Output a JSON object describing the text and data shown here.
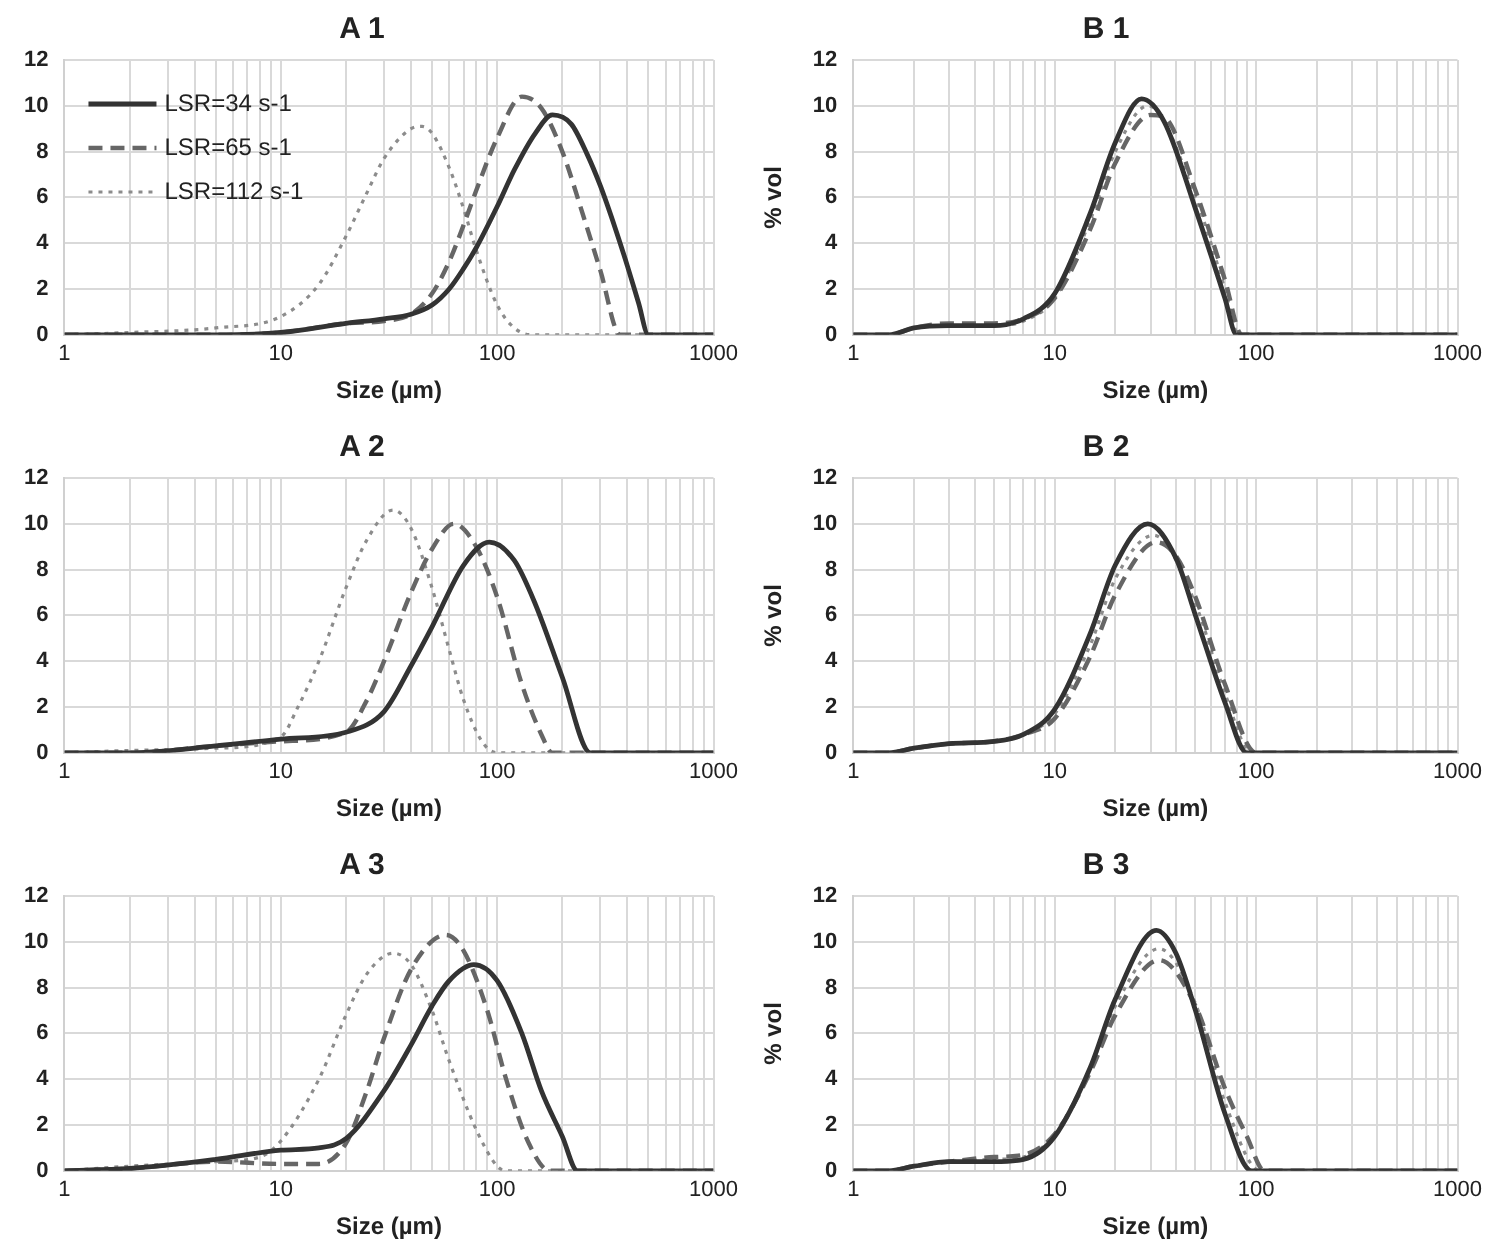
{
  "chart_data": [
    {
      "type": "line",
      "title": "A 1",
      "xlabel": "Size (µm)",
      "log": "x",
      "grid": true,
      "legend": "top left",
      "xlim": [
        1,
        1000
      ],
      "ylim": [
        0,
        12
      ],
      "xticks": [
        1,
        {
          "value": 2,
          "label": null
        },
        {
          "value": 3,
          "label": null
        },
        {
          "value": 4,
          "label": null
        },
        {
          "value": 5,
          "label": null
        },
        {
          "value": 6,
          "label": null
        },
        {
          "value": 7,
          "label": null
        },
        {
          "value": 8,
          "label": null
        },
        {
          "value": 9,
          "label": null
        },
        10,
        {
          "value": 20,
          "label": null
        },
        {
          "value": 30,
          "label": null
        },
        {
          "value": 40,
          "label": null
        },
        {
          "value": 50,
          "label": null
        },
        {
          "value": 60,
          "label": null
        },
        {
          "value": 70,
          "label": null
        },
        {
          "value": 80,
          "label": null
        },
        {
          "value": 90,
          "label": null
        },
        100,
        {
          "value": 200,
          "label": null
        },
        {
          "value": 300,
          "label": null
        },
        {
          "value": 400,
          "label": null
        },
        {
          "value": 500,
          "label": null
        },
        {
          "value": 600,
          "label": null
        },
        {
          "value": 700,
          "label": null
        },
        {
          "value": 800,
          "label": null
        },
        {
          "value": 900,
          "label": null
        },
        1000
      ],
      "yticks": [
        0,
        2,
        4,
        6,
        8,
        10,
        12
      ],
      "series": [
        {
          "name": "LSR=34 s-1",
          "color": "#333333",
          "line_style": "solid",
          "x": [
            1,
            5,
            10,
            20,
            30,
            40,
            50,
            60,
            70,
            80,
            100,
            120,
            150,
            180,
            220,
            260,
            300,
            350,
            400,
            450,
            500,
            1000
          ],
          "values": [
            0,
            0,
            0.1,
            0.5,
            0.7,
            0.9,
            1.3,
            2.0,
            2.9,
            3.8,
            5.6,
            7.2,
            8.8,
            9.6,
            9.2,
            7.9,
            6.5,
            4.7,
            3.0,
            1.4,
            0,
            0
          ]
        },
        {
          "name": "LSR=65 s-1",
          "color": "#666666",
          "line_style": "dashed",
          "x": [
            1,
            5,
            10,
            20,
            30,
            40,
            50,
            60,
            70,
            80,
            100,
            130,
            160,
            200,
            250,
            300,
            370,
            1000
          ],
          "values": [
            0,
            0,
            0.1,
            0.5,
            0.6,
            0.9,
            1.8,
            3.2,
            4.8,
            6.3,
            8.6,
            10.4,
            9.9,
            8.0,
            5.2,
            2.8,
            0,
            0
          ]
        },
        {
          "name": "LSR=112 s-1",
          "color": "#8c8c8c",
          "line_style": "dotted",
          "x": [
            1,
            2,
            5,
            10,
            15,
            20,
            25,
            30,
            40,
            45,
            50,
            60,
            70,
            80,
            100,
            120,
            145,
            1000
          ],
          "values": [
            0,
            0.1,
            0.3,
            0.8,
            2.2,
            4.3,
            6.2,
            7.7,
            9.0,
            9.1,
            8.8,
            7.3,
            5.5,
            3.7,
            1.3,
            0.3,
            0,
            0
          ]
        }
      ]
    },
    {
      "type": "line",
      "title": "B 1",
      "xlabel": "Size (µm)",
      "ylabel": "% vol",
      "log": "x",
      "grid": true,
      "legend": false,
      "xlim": [
        1,
        1000
      ],
      "ylim": [
        0,
        12
      ],
      "xticks": [
        1,
        {
          "value": 2,
          "label": null
        },
        {
          "value": 3,
          "label": null
        },
        {
          "value": 4,
          "label": null
        },
        {
          "value": 5,
          "label": null
        },
        {
          "value": 6,
          "label": null
        },
        {
          "value": 7,
          "label": null
        },
        {
          "value": 8,
          "label": null
        },
        {
          "value": 9,
          "label": null
        },
        10,
        {
          "value": 20,
          "label": null
        },
        {
          "value": 30,
          "label": null
        },
        {
          "value": 40,
          "label": null
        },
        {
          "value": 50,
          "label": null
        },
        {
          "value": 60,
          "label": null
        },
        {
          "value": 70,
          "label": null
        },
        {
          "value": 80,
          "label": null
        },
        {
          "value": 90,
          "label": null
        },
        100,
        {
          "value": 200,
          "label": null
        },
        {
          "value": 300,
          "label": null
        },
        {
          "value": 400,
          "label": null
        },
        {
          "value": 500,
          "label": null
        },
        {
          "value": 600,
          "label": null
        },
        {
          "value": 700,
          "label": null
        },
        {
          "value": 800,
          "label": null
        },
        {
          "value": 900,
          "label": null
        },
        1000
      ],
      "yticks": [
        0,
        2,
        4,
        6,
        8,
        10,
        12
      ],
      "series": [
        {
          "color": "#333333",
          "line_style": "solid",
          "x": [
            1,
            1.5,
            2,
            3,
            5,
            7,
            10,
            15,
            20,
            27,
            35,
            50,
            70,
            80,
            1000
          ],
          "values": [
            0,
            0,
            0.3,
            0.4,
            0.4,
            0.7,
            1.8,
            5.3,
            8.4,
            10.3,
            9.3,
            5.5,
            1.6,
            0,
            0
          ]
        },
        {
          "color": "#666666",
          "line_style": "dashed",
          "x": [
            1,
            1.5,
            2,
            3,
            5,
            7,
            10,
            15,
            20,
            30,
            35,
            50,
            70,
            85,
            1000
          ],
          "values": [
            0,
            0,
            0.3,
            0.5,
            0.5,
            0.7,
            1.6,
            4.6,
            7.5,
            9.6,
            9.5,
            6.3,
            2.4,
            0,
            0
          ]
        },
        {
          "color": "#8c8c8c",
          "line_style": "dotted",
          "x": [
            1,
            1.5,
            2,
            3,
            5,
            7,
            10,
            15,
            20,
            29,
            50,
            70,
            82,
            1000
          ],
          "values": [
            0,
            0,
            0.3,
            0.4,
            0.4,
            0.6,
            1.6,
            5.0,
            8.0,
            10.0,
            6.0,
            2.0,
            0,
            0
          ]
        }
      ]
    },
    {
      "type": "line",
      "title": "A 2",
      "xlabel": "Size (µm)",
      "log": "x",
      "grid": true,
      "legend": false,
      "xlim": [
        1,
        1000
      ],
      "ylim": [
        0,
        12
      ],
      "xticks": [
        1,
        {
          "value": 2,
          "label": null
        },
        {
          "value": 3,
          "label": null
        },
        {
          "value": 4,
          "label": null
        },
        {
          "value": 5,
          "label": null
        },
        {
          "value": 6,
          "label": null
        },
        {
          "value": 7,
          "label": null
        },
        {
          "value": 8,
          "label": null
        },
        {
          "value": 9,
          "label": null
        },
        10,
        {
          "value": 20,
          "label": null
        },
        {
          "value": 30,
          "label": null
        },
        {
          "value": 40,
          "label": null
        },
        {
          "value": 50,
          "label": null
        },
        {
          "value": 60,
          "label": null
        },
        {
          "value": 70,
          "label": null
        },
        {
          "value": 80,
          "label": null
        },
        {
          "value": 90,
          "label": null
        },
        100,
        {
          "value": 200,
          "label": null
        },
        {
          "value": 300,
          "label": null
        },
        {
          "value": 400,
          "label": null
        },
        {
          "value": 500,
          "label": null
        },
        {
          "value": 600,
          "label": null
        },
        {
          "value": 700,
          "label": null
        },
        {
          "value": 800,
          "label": null
        },
        {
          "value": 900,
          "label": null
        },
        1000
      ],
      "yticks": [
        0,
        2,
        4,
        6,
        8,
        10,
        12
      ],
      "series": [
        {
          "color": "#333333",
          "line_style": "solid",
          "x": [
            1,
            2,
            5,
            10,
            20,
            30,
            40,
            50,
            70,
            92,
            120,
            150,
            200,
            270,
            1000
          ],
          "values": [
            0,
            0,
            0.3,
            0.6,
            0.9,
            1.8,
            3.8,
            5.5,
            8.2,
            9.2,
            8.4,
            6.5,
            3.3,
            0,
            0
          ]
        },
        {
          "color": "#666666",
          "line_style": "dashed",
          "x": [
            1,
            2,
            5,
            10,
            20,
            25,
            30,
            40,
            50,
            63,
            80,
            100,
            130,
            160,
            180,
            1000
          ],
          "values": [
            0,
            0,
            0.3,
            0.5,
            0.9,
            2.3,
            4.0,
            7.0,
            8.9,
            10.0,
            9.0,
            6.8,
            3.0,
            0.8,
            0,
            0
          ]
        },
        {
          "color": "#8c8c8c",
          "line_style": "dotted",
          "x": [
            1,
            2,
            5,
            10,
            12,
            15,
            20,
            25,
            33,
            40,
            50,
            60,
            70,
            85,
            100,
            1000
          ],
          "values": [
            0,
            0.1,
            0.2,
            0.7,
            2.0,
            4.0,
            7.2,
            9.3,
            10.6,
            9.8,
            7.2,
            4.5,
            2.3,
            0.5,
            0,
            0
          ]
        }
      ]
    },
    {
      "type": "line",
      "title": "B 2",
      "xlabel": "Size (µm)",
      "ylabel": "% vol",
      "log": "x",
      "grid": true,
      "legend": false,
      "xlim": [
        1,
        1000
      ],
      "ylim": [
        0,
        12
      ],
      "xticks": [
        1,
        {
          "value": 2,
          "label": null
        },
        {
          "value": 3,
          "label": null
        },
        {
          "value": 4,
          "label": null
        },
        {
          "value": 5,
          "label": null
        },
        {
          "value": 6,
          "label": null
        },
        {
          "value": 7,
          "label": null
        },
        {
          "value": 8,
          "label": null
        },
        {
          "value": 9,
          "label": null
        },
        10,
        {
          "value": 20,
          "label": null
        },
        {
          "value": 30,
          "label": null
        },
        {
          "value": 40,
          "label": null
        },
        {
          "value": 50,
          "label": null
        },
        {
          "value": 60,
          "label": null
        },
        {
          "value": 70,
          "label": null
        },
        {
          "value": 80,
          "label": null
        },
        {
          "value": 90,
          "label": null
        },
        100,
        {
          "value": 200,
          "label": null
        },
        {
          "value": 300,
          "label": null
        },
        {
          "value": 400,
          "label": null
        },
        {
          "value": 500,
          "label": null
        },
        {
          "value": 600,
          "label": null
        },
        {
          "value": 700,
          "label": null
        },
        {
          "value": 800,
          "label": null
        },
        {
          "value": 900,
          "label": null
        },
        1000
      ],
      "yticks": [
        0,
        2,
        4,
        6,
        8,
        10,
        12
      ],
      "series": [
        {
          "color": "#333333",
          "line_style": "solid",
          "x": [
            1,
            1.5,
            2,
            3,
            5,
            7,
            10,
            15,
            20,
            29,
            40,
            50,
            70,
            90,
            1000
          ],
          "values": [
            0,
            0,
            0.2,
            0.4,
            0.5,
            0.8,
            1.9,
            5.2,
            8.2,
            10.0,
            8.5,
            6.0,
            2.2,
            0,
            0
          ]
        },
        {
          "color": "#666666",
          "line_style": "dashed",
          "x": [
            1,
            1.5,
            2,
            3,
            5,
            7,
            10,
            15,
            20,
            32,
            40,
            50,
            70,
            100,
            1000
          ],
          "values": [
            0,
            0,
            0.2,
            0.4,
            0.5,
            0.8,
            1.5,
            4.2,
            6.9,
            9.2,
            8.6,
            6.8,
            3.0,
            0,
            0
          ]
        },
        {
          "color": "#8c8c8c",
          "line_style": "dotted",
          "x": [
            1,
            1.5,
            2,
            3,
            5,
            7,
            10,
            15,
            20,
            31,
            50,
            70,
            95,
            1000
          ],
          "values": [
            0,
            0,
            0.2,
            0.4,
            0.5,
            0.8,
            1.7,
            4.7,
            7.6,
            9.5,
            6.5,
            2.6,
            0,
            0
          ]
        }
      ]
    },
    {
      "type": "line",
      "title": "A 3",
      "xlabel": "Size (µm)",
      "log": "x",
      "grid": true,
      "legend": false,
      "xlim": [
        1,
        1000
      ],
      "ylim": [
        0,
        12
      ],
      "xticks": [
        1,
        {
          "value": 2,
          "label": null
        },
        {
          "value": 3,
          "label": null
        },
        {
          "value": 4,
          "label": null
        },
        {
          "value": 5,
          "label": null
        },
        {
          "value": 6,
          "label": null
        },
        {
          "value": 7,
          "label": null
        },
        {
          "value": 8,
          "label": null
        },
        {
          "value": 9,
          "label": null
        },
        10,
        {
          "value": 20,
          "label": null
        },
        {
          "value": 30,
          "label": null
        },
        {
          "value": 40,
          "label": null
        },
        {
          "value": 50,
          "label": null
        },
        {
          "value": 60,
          "label": null
        },
        {
          "value": 70,
          "label": null
        },
        {
          "value": 80,
          "label": null
        },
        {
          "value": 90,
          "label": null
        },
        100,
        {
          "value": 200,
          "label": null
        },
        {
          "value": 300,
          "label": null
        },
        {
          "value": 400,
          "label": null
        },
        {
          "value": 500,
          "label": null
        },
        {
          "value": 600,
          "label": null
        },
        {
          "value": 700,
          "label": null
        },
        {
          "value": 800,
          "label": null
        },
        {
          "value": 900,
          "label": null
        },
        1000
      ],
      "yticks": [
        0,
        2,
        4,
        6,
        8,
        10,
        12
      ],
      "series": [
        {
          "color": "#333333",
          "line_style": "solid",
          "x": [
            1,
            2,
            5,
            10,
            15,
            20,
            30,
            40,
            50,
            60,
            78,
            100,
            130,
            160,
            200,
            235,
            1000
          ],
          "values": [
            0,
            0.1,
            0.5,
            0.9,
            1.0,
            1.4,
            3.5,
            5.5,
            7.2,
            8.3,
            9.0,
            8.3,
            6.0,
            3.5,
            1.5,
            0,
            0
          ]
        },
        {
          "color": "#666666",
          "line_style": "dashed",
          "x": [
            1,
            2,
            5,
            10,
            15,
            20,
            25,
            30,
            40,
            58,
            70,
            90,
            110,
            140,
            175,
            1000
          ],
          "values": [
            0,
            0.1,
            0.4,
            0.3,
            0.3,
            1.2,
            3.5,
            5.8,
            8.8,
            10.3,
            9.6,
            7.0,
            4.0,
            1.2,
            0,
            0
          ]
        },
        {
          "color": "#8c8c8c",
          "line_style": "dotted",
          "x": [
            1,
            2,
            5,
            8,
            10,
            15,
            20,
            25,
            33,
            40,
            50,
            60,
            80,
            100,
            110,
            1000
          ],
          "values": [
            0,
            0.2,
            0.4,
            0.6,
            1.3,
            4.0,
            6.8,
            8.6,
            9.5,
            9.0,
            7.0,
            4.8,
            1.8,
            0.2,
            0,
            0
          ]
        }
      ]
    },
    {
      "type": "line",
      "title": "B 3",
      "xlabel": "Size (µm)",
      "ylabel": "% vol",
      "log": "x",
      "grid": true,
      "legend": false,
      "xlim": [
        1,
        1000
      ],
      "ylim": [
        0,
        12
      ],
      "xticks": [
        1,
        {
          "value": 2,
          "label": null
        },
        {
          "value": 3,
          "label": null
        },
        {
          "value": 4,
          "label": null
        },
        {
          "value": 5,
          "label": null
        },
        {
          "value": 6,
          "label": null
        },
        {
          "value": 7,
          "label": null
        },
        {
          "value": 8,
          "label": null
        },
        {
          "value": 9,
          "label": null
        },
        10,
        {
          "value": 20,
          "label": null
        },
        {
          "value": 30,
          "label": null
        },
        {
          "value": 40,
          "label": null
        },
        {
          "value": 50,
          "label": null
        },
        {
          "value": 60,
          "label": null
        },
        {
          "value": 70,
          "label": null
        },
        {
          "value": 80,
          "label": null
        },
        {
          "value": 90,
          "label": null
        },
        100,
        {
          "value": 200,
          "label": null
        },
        {
          "value": 300,
          "label": null
        },
        {
          "value": 400,
          "label": null
        },
        {
          "value": 500,
          "label": null
        },
        {
          "value": 600,
          "label": null
        },
        {
          "value": 700,
          "label": null
        },
        {
          "value": 800,
          "label": null
        },
        {
          "value": 900,
          "label": null
        },
        1000
      ],
      "yticks": [
        0,
        2,
        4,
        6,
        8,
        10,
        12
      ],
      "series": [
        {
          "color": "#333333",
          "line_style": "solid",
          "x": [
            1,
            1.5,
            2,
            3,
            5,
            7,
            10,
            15,
            20,
            32,
            40,
            50,
            70,
            95,
            1000
          ],
          "values": [
            0,
            0,
            0.2,
            0.4,
            0.4,
            0.5,
            1.5,
            4.5,
            7.5,
            10.5,
            9.5,
            7.0,
            2.5,
            0,
            0
          ]
        },
        {
          "color": "#666666",
          "line_style": "dashed",
          "x": [
            1,
            1.5,
            2,
            3,
            5,
            7,
            10,
            15,
            20,
            33,
            50,
            70,
            90,
            110,
            1000
          ],
          "values": [
            0,
            0,
            0.2,
            0.4,
            0.6,
            0.7,
            1.6,
            4.3,
            6.8,
            9.2,
            7.2,
            3.6,
            1.5,
            0,
            0
          ]
        },
        {
          "color": "#8c8c8c",
          "line_style": "dotted",
          "x": [
            1,
            1.5,
            2,
            3,
            5,
            7,
            10,
            15,
            20,
            33,
            50,
            70,
            105,
            1000
          ],
          "values": [
            0,
            0,
            0.2,
            0.4,
            0.5,
            0.6,
            1.6,
            4.5,
            7.2,
            9.7,
            7.3,
            3.0,
            0,
            0
          ]
        }
      ]
    }
  ]
}
